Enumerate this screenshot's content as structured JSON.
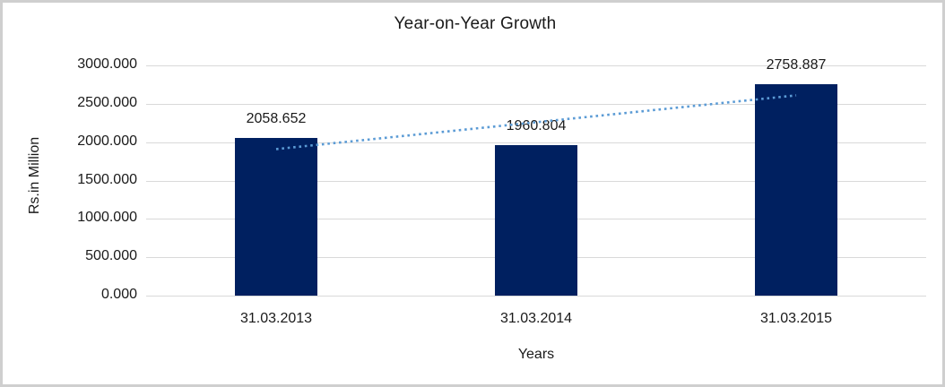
{
  "chart_data": {
    "type": "bar",
    "title": "Year-on-Year Growth",
    "xlabel": "Years",
    "ylabel": "Rs.in Million",
    "categories": [
      "31.03.2013",
      "31.03.2014",
      "31.03.2015"
    ],
    "values": [
      2058.652,
      1960.804,
      2758.887
    ],
    "value_labels": [
      "2058.652",
      "1960.804",
      "2758.887"
    ],
    "ylim": [
      0,
      3000
    ],
    "ytick_step": 500,
    "ytick_labels": [
      "0.000",
      "500.000",
      "1000.000",
      "1500.000",
      "2000.000",
      "2500.000",
      "3000.000"
    ],
    "grid": true,
    "legend": "none",
    "colors": {
      "bar": "#002060",
      "trendline": "#5b9bd5",
      "gridline": "#d9d9d9",
      "text": "#1a1a1a",
      "frame_border": "#cfcfcf",
      "background": "#ffffff"
    },
    "trendline": {
      "style": "dotted",
      "type": "linear",
      "start_value": 1909.33,
      "end_value": 2609.57
    }
  }
}
